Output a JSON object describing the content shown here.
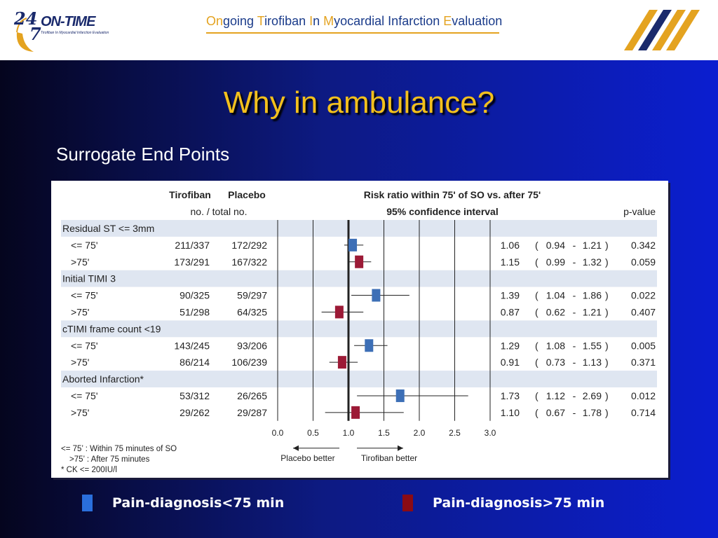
{
  "header": {
    "logo_24": "24",
    "logo_7": "7",
    "logo_name": "ON-TIME",
    "logo_tagline": "Tirofiban In Myocardial Infarction Evaluation",
    "title_parts": [
      {
        "text": "On",
        "accent": true
      },
      {
        "text": "going ",
        "accent": false
      },
      {
        "text": "T",
        "accent": true
      },
      {
        "text": "irofiban ",
        "accent": false
      },
      {
        "text": "I",
        "accent": true
      },
      {
        "text": "n ",
        "accent": false
      },
      {
        "text": "M",
        "accent": true
      },
      {
        "text": "yocardial Infarction ",
        "accent": false
      },
      {
        "text": "E",
        "accent": true
      },
      {
        "text": "valuation",
        "accent": false
      }
    ]
  },
  "slide": {
    "title": "Why in ambulance?",
    "subtitle": "Surrogate End Points"
  },
  "legend": [
    {
      "label": "Pain-diagnosis<75 min",
      "color": "#2a6fdc"
    },
    {
      "label": "Pain-diagnosis>75 min",
      "color": "#8b0b14"
    }
  ],
  "colors": {
    "title": "#f3c01d",
    "accent_gold": "#e4a320",
    "navy": "#1a2a6c",
    "group_band": "#dfe6f1",
    "early_marker": "#3d6fb6",
    "late_marker": "#9c1a36"
  },
  "chart_data": {
    "type": "forest",
    "headers": {
      "col1": "Tirofiban",
      "col2": "Placebo",
      "sub": "no. / total no.",
      "risk_title": "Risk ratio within 75' of SO vs. after 75'",
      "ci_title": "95% confidence interval",
      "pvalue": "p-value"
    },
    "xlim": [
      0.0,
      3.0
    ],
    "ref_line": 1.0,
    "x_ticks": [
      "0.0",
      "0.5",
      "1.0",
      "1.5",
      "2.0",
      "2.5",
      "3.0"
    ],
    "direction_left": "Placebo better",
    "direction_right": "Tirofiban better",
    "rows": [
      {
        "kind": "group",
        "label": "Residual ST <= 3mm"
      },
      {
        "kind": "data",
        "group": "early",
        "label": "<= 75'",
        "tirofiban": "211/337",
        "placebo": "172/292",
        "rr": 1.06,
        "lo": 0.94,
        "hi": 1.21,
        "rr_text": "1.06",
        "lo_text": "0.94",
        "hi_text": "1.21",
        "p": "0.342"
      },
      {
        "kind": "data",
        "group": "late",
        "label": ">75'",
        "tirofiban": "173/291",
        "placebo": "167/322",
        "rr": 1.15,
        "lo": 0.99,
        "hi": 1.32,
        "rr_text": "1.15",
        "lo_text": "0.99",
        "hi_text": "1.32",
        "p": "0.059"
      },
      {
        "kind": "group",
        "label": "Initial TIMI 3"
      },
      {
        "kind": "data",
        "group": "early",
        "label": "<= 75'",
        "tirofiban": "90/325",
        "placebo": "59/297",
        "rr": 1.39,
        "lo": 1.04,
        "hi": 1.86,
        "rr_text": "1.39",
        "lo_text": "1.04",
        "hi_text": "1.86",
        "p": "0.022"
      },
      {
        "kind": "data",
        "group": "late",
        "label": ">75'",
        "tirofiban": "51/298",
        "placebo": "64/325",
        "rr": 0.87,
        "lo": 0.62,
        "hi": 1.21,
        "rr_text": "0.87",
        "lo_text": "0.62",
        "hi_text": "1.21",
        "p": "0.407"
      },
      {
        "kind": "group",
        "label": "cTIMI frame count <19"
      },
      {
        "kind": "data",
        "group": "early",
        "label": "<= 75'",
        "tirofiban": "143/245",
        "placebo": "93/206",
        "rr": 1.29,
        "lo": 1.08,
        "hi": 1.55,
        "rr_text": "1.29",
        "lo_text": "1.08",
        "hi_text": "1.55",
        "p": "0.005"
      },
      {
        "kind": "data",
        "group": "late",
        "label": ">75'",
        "tirofiban": "86/214",
        "placebo": "106/239",
        "rr": 0.91,
        "lo": 0.73,
        "hi": 1.13,
        "rr_text": "0.91",
        "lo_text": "0.73",
        "hi_text": "1.13",
        "p": "0.371"
      },
      {
        "kind": "group",
        "label": "Aborted Infarction*"
      },
      {
        "kind": "data",
        "group": "early",
        "label": "<= 75'",
        "tirofiban": "53/312",
        "placebo": "26/265",
        "rr": 1.73,
        "lo": 1.12,
        "hi": 2.69,
        "rr_text": "1.73",
        "lo_text": "1.12",
        "hi_text": "2.69",
        "p": "0.012"
      },
      {
        "kind": "data",
        "group": "late",
        "label": ">75'",
        "tirofiban": "29/262",
        "placebo": "29/287",
        "rr": 1.1,
        "lo": 0.67,
        "hi": 1.78,
        "rr_text": "1.10",
        "lo_text": "0.67",
        "hi_text": "1.78",
        "p": "0.714"
      }
    ],
    "footnotes": [
      "<= 75’ : Within 75 minutes of SO",
      ">75’ : After 75 minutes",
      "* CK <= 200IU/l"
    ]
  }
}
